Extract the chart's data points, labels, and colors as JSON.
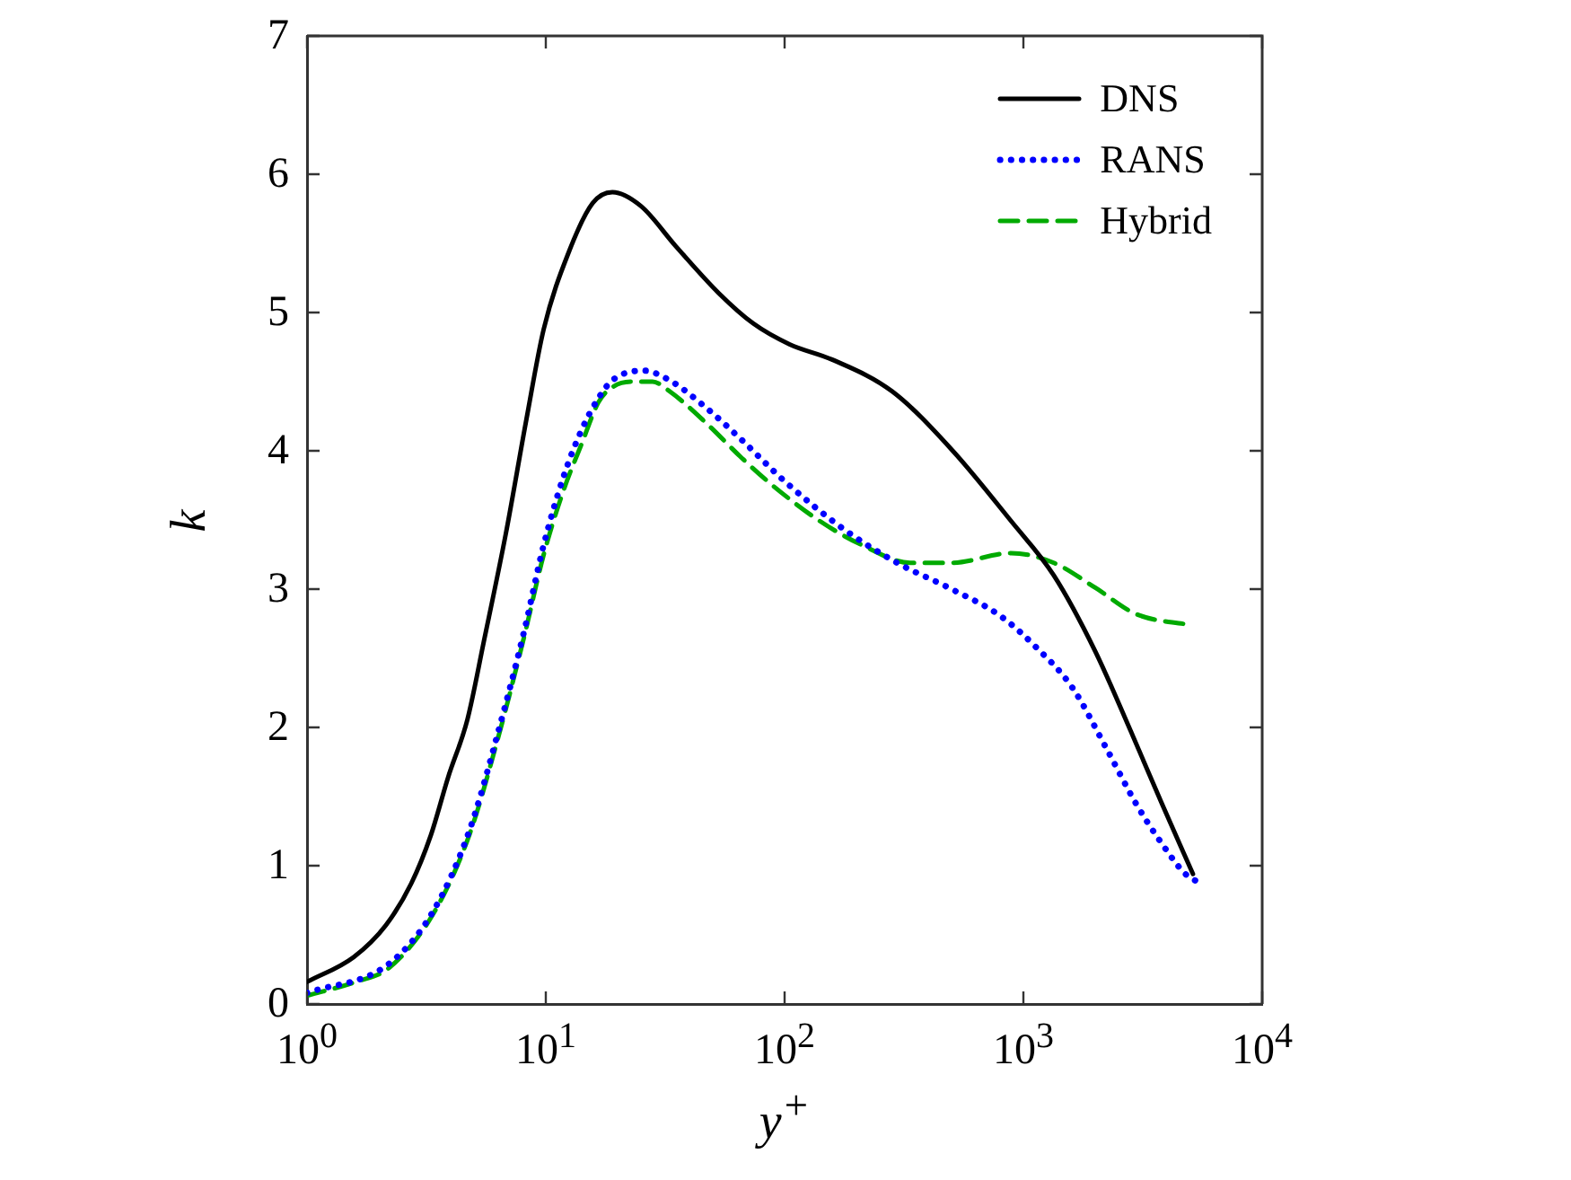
{
  "chart_data": {
    "type": "line",
    "xlabel": "y$^{+}$",
    "ylabel": "k",
    "log": "x",
    "xlim": [
      1,
      10000
    ],
    "xticks": [
      {
        "value": 1,
        "label": "10$^{0}$"
      },
      {
        "value": 10,
        "label": "10$^{1}$"
      },
      {
        "value": 100,
        "label": "10$^{2}$"
      },
      {
        "value": 1000,
        "label": "10$^{3}$"
      },
      {
        "value": 10000,
        "label": "10$^{4}$"
      }
    ],
    "ylim": [
      0,
      7
    ],
    "yticks": [
      0,
      1,
      2,
      3,
      4,
      5,
      6,
      7
    ],
    "grid": false,
    "legend": "top right",
    "series": [
      {
        "name": "DNS",
        "color": "#000000",
        "line_style": "solid",
        "x": [
          1,
          1.57,
          2.14,
          2.73,
          3.3,
          3.9,
          4.7,
          5.5,
          6.8,
          8.3,
          9.8,
          12.5,
          15.7,
          19,
          25,
          35,
          53,
          74,
          105,
          158,
          282,
          500,
          890,
          1340,
          2000,
          2820,
          3800,
          5130
        ],
        "values": [
          0.16,
          0.34,
          0.57,
          0.87,
          1.22,
          1.64,
          2.06,
          2.62,
          3.4,
          4.23,
          4.88,
          5.44,
          5.79,
          5.87,
          5.77,
          5.48,
          5.14,
          4.92,
          4.77,
          4.66,
          4.43,
          4.01,
          3.49,
          3.1,
          2.55,
          1.97,
          1.45,
          0.94
        ]
      },
      {
        "name": "RANS",
        "color": "#0000ff",
        "line_style": "dotted",
        "x": [
          1,
          2.2,
          3.4,
          4.8,
          6.3,
          8.1,
          9.8,
          11.9,
          14.2,
          16.6,
          19,
          25.6,
          33,
          47,
          66,
          100,
          178,
          296,
          500,
          795,
          1130,
          1600,
          2240,
          2960,
          3800,
          4770,
          5550
        ],
        "values": [
          0.08,
          0.29,
          0.68,
          1.26,
          1.96,
          2.69,
          3.32,
          3.82,
          4.16,
          4.38,
          4.51,
          4.58,
          4.51,
          4.31,
          4.08,
          3.78,
          3.43,
          3.19,
          3.0,
          2.81,
          2.58,
          2.29,
          1.84,
          1.45,
          1.16,
          0.94,
          0.87
        ]
      },
      {
        "name": "Hybrid",
        "color": "#00aa00",
        "line_style": "dashed",
        "x": [
          1,
          1.6,
          2.2,
          3.4,
          4.8,
          6.3,
          8.1,
          9.8,
          11.9,
          14.2,
          16.6,
          19,
          23,
          28,
          33,
          47,
          66,
          89,
          141,
          210,
          336,
          500,
          890,
          1340,
          2000,
          2960,
          5000
        ],
        "values": [
          0.06,
          0.16,
          0.26,
          0.66,
          1.23,
          1.92,
          2.65,
          3.25,
          3.72,
          4.06,
          4.35,
          4.46,
          4.5,
          4.5,
          4.43,
          4.2,
          3.95,
          3.75,
          3.49,
          3.32,
          3.19,
          3.19,
          3.26,
          3.19,
          3.01,
          2.82,
          2.74
        ]
      }
    ]
  }
}
